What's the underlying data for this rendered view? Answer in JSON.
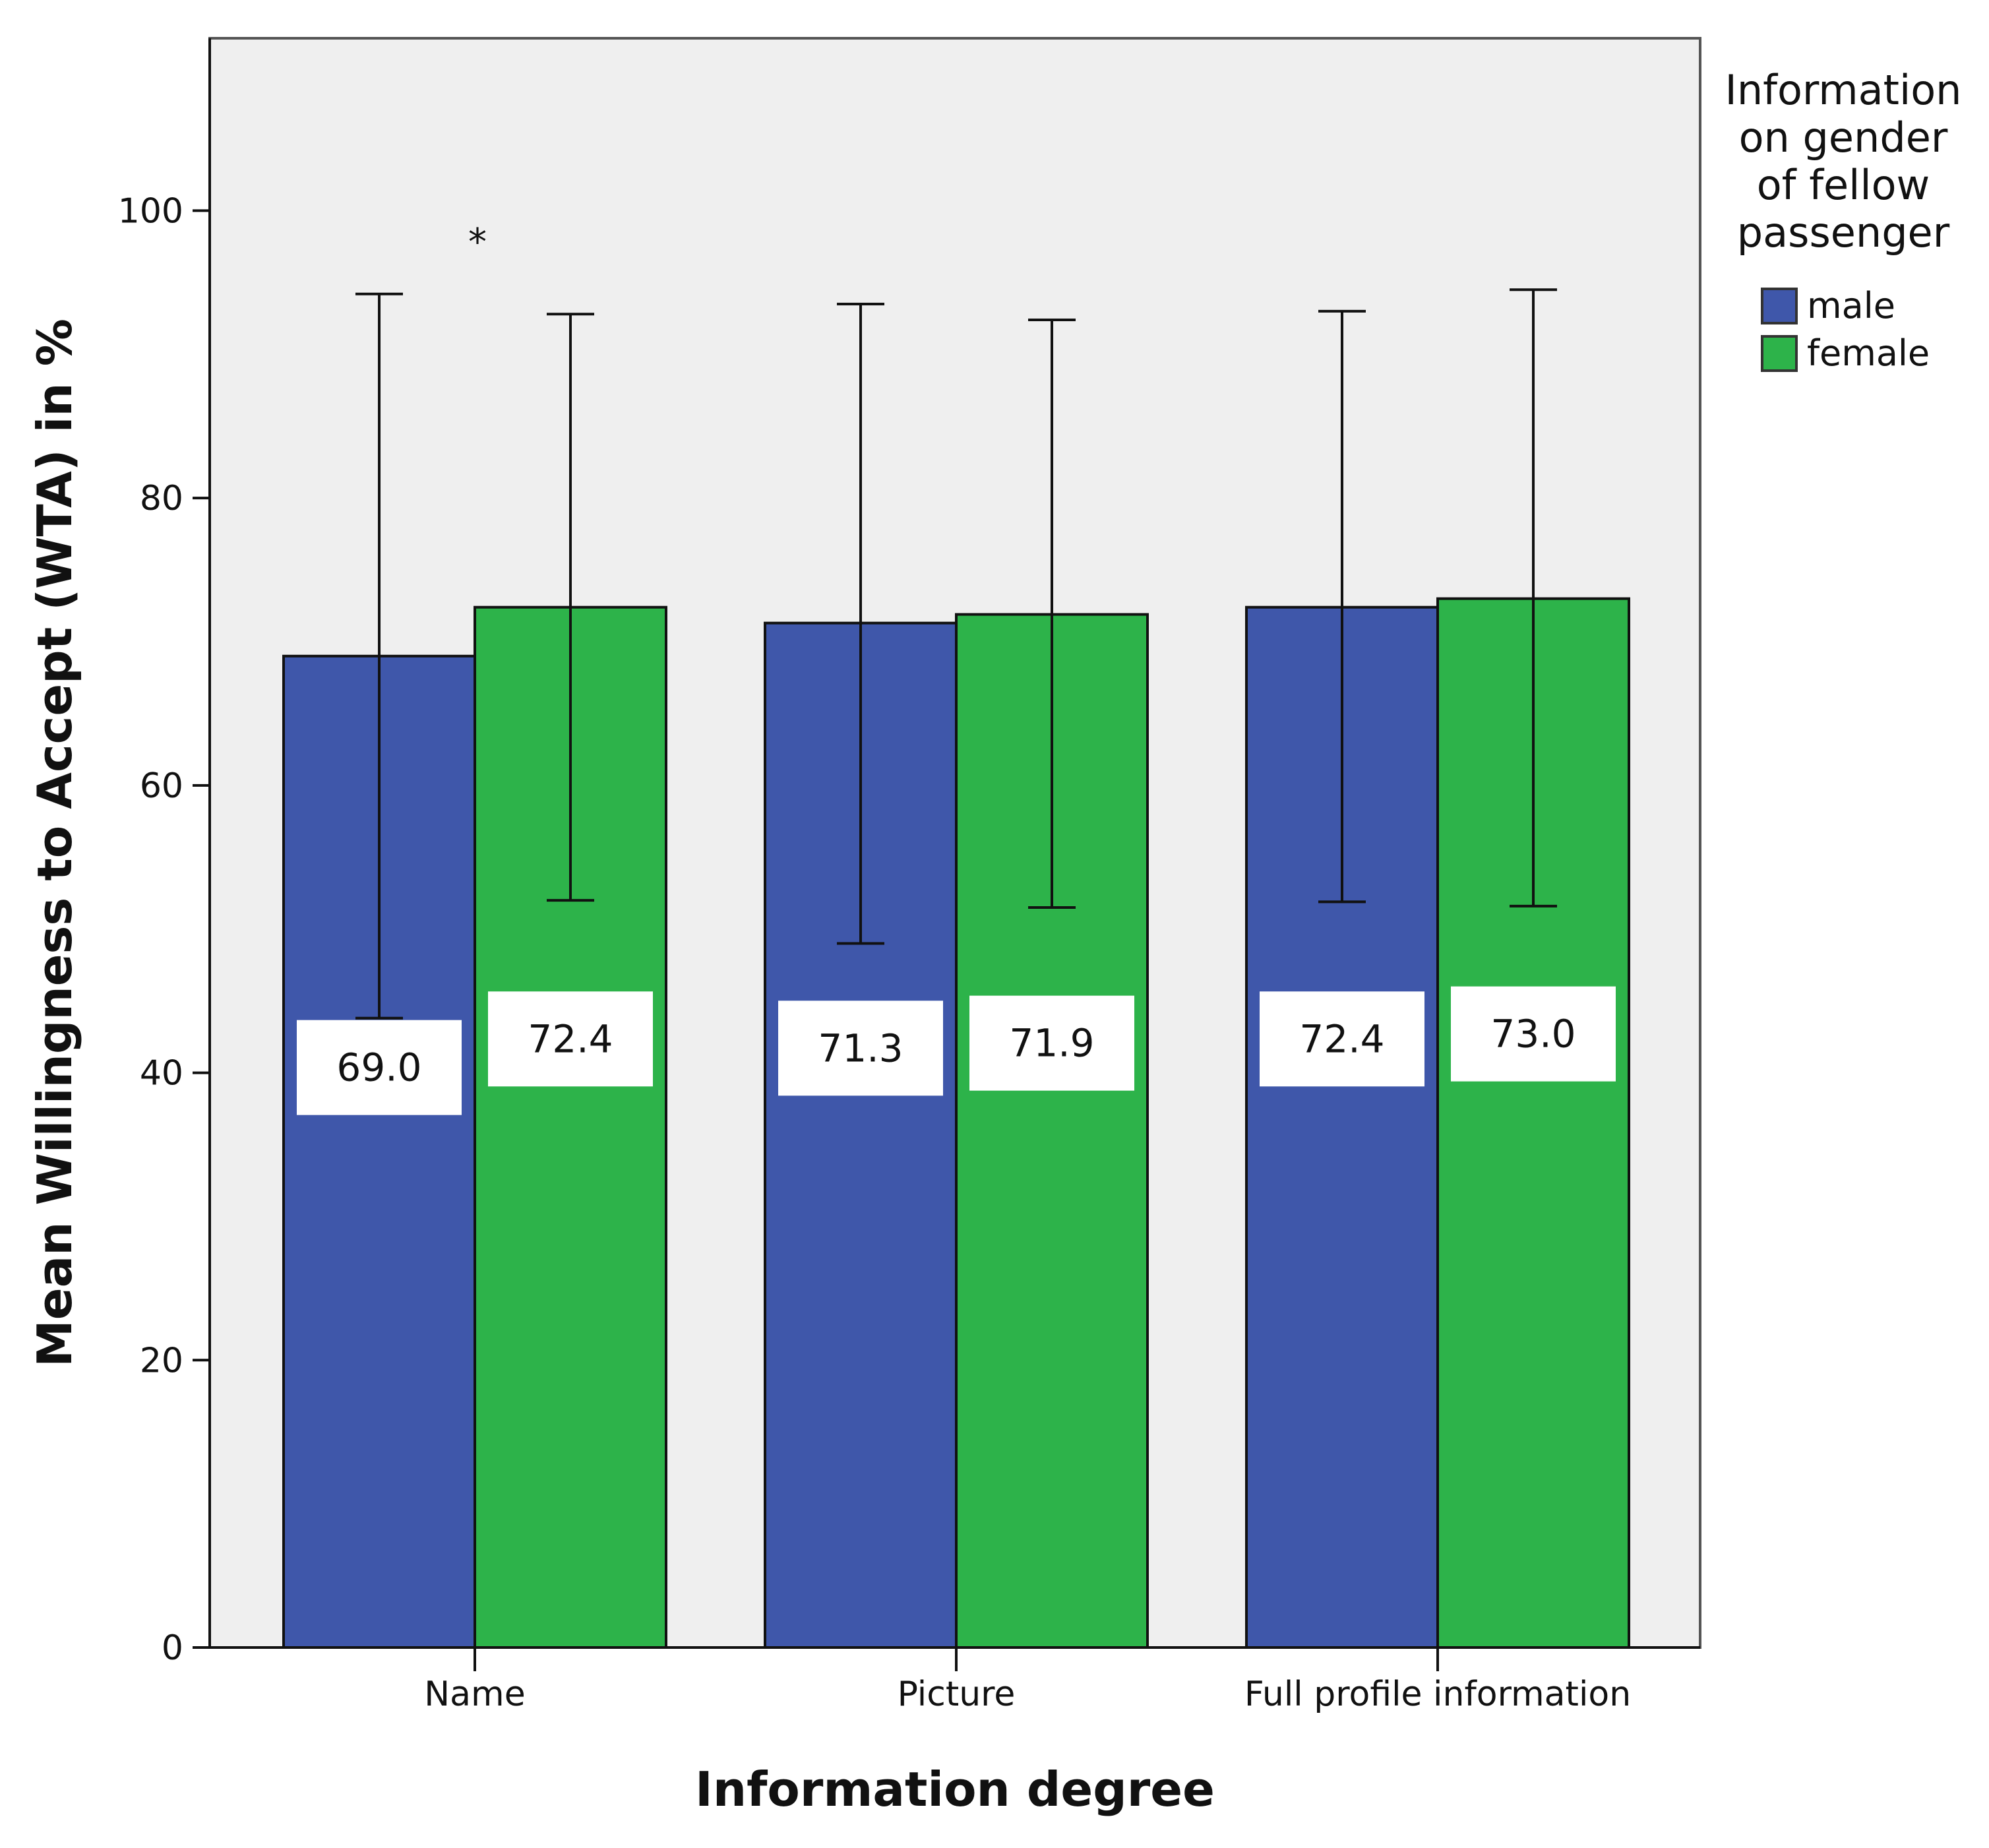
{
  "chart_data": {
    "type": "bar",
    "categories": [
      "Name",
      "Picture",
      "Full profile information"
    ],
    "series": [
      {
        "name": "male",
        "color": "#3f57aa",
        "values": [
          69.0,
          71.3,
          72.4
        ],
        "labels": [
          "69.0",
          "71.3",
          "72.4"
        ],
        "error_low": [
          43.8,
          49.0,
          51.9
        ],
        "error_high": [
          94.2,
          93.5,
          93.0
        ]
      },
      {
        "name": "female",
        "color": "#2db34a",
        "values": [
          72.4,
          71.9,
          73.0
        ],
        "labels": [
          "72.4",
          "71.9",
          "73.0"
        ],
        "error_low": [
          52.0,
          51.5,
          51.6
        ],
        "error_high": [
          92.8,
          92.4,
          94.5
        ]
      }
    ],
    "xlabel": "Information degree",
    "ylabel": "Mean Willingness to Accept (WTA) in %",
    "ylim": [
      0,
      112
    ],
    "yticks": [
      0,
      20,
      40,
      60,
      80,
      100
    ],
    "legend": {
      "title_lines": [
        "Information",
        "on gender",
        "of fellow",
        "passenger"
      ],
      "placement": "right"
    },
    "annotations": [
      {
        "text": "*",
        "category": "Name",
        "y": 98.7
      }
    ],
    "background_color": "#efefef",
    "grid": false
  }
}
